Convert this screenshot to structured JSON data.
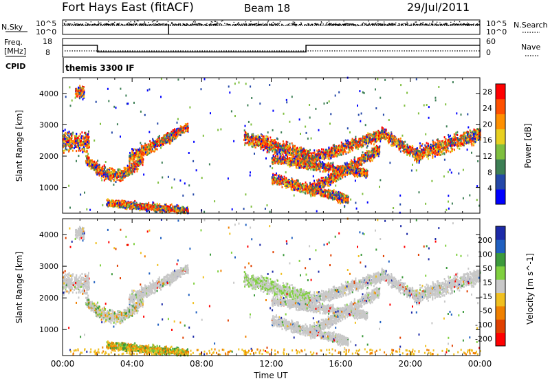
{
  "header": {
    "station": "Fort Hays East (fitACF)",
    "beam": "Beam 18",
    "date": "29/Jul/2011"
  },
  "chart_data": [
    {
      "type": "line",
      "panel": "sky-noise",
      "left_label": "N.Sky",
      "right_label": "N.Search",
      "left_ticks": [
        "10^5",
        "10^0"
      ],
      "right_ticks": [
        "10^5",
        "10^0"
      ],
      "series": [
        {
          "name": "N.Sky",
          "style": "points"
        },
        {
          "name": "N.Search",
          "style": "dotted"
        }
      ]
    },
    {
      "type": "line",
      "panel": "frequency-nave",
      "left_label_line1": "Freq.",
      "left_label_line2": "[MHz]",
      "right_label": "Nave",
      "left_ticks": [
        18,
        8
      ],
      "right_ticks": [
        60,
        0
      ],
      "ylim_freq": [
        8,
        18
      ],
      "ylim_nave": [
        0,
        60
      ],
      "series": [
        {
          "name": "Freq.",
          "style": "solid",
          "segments": [
            [
              0,
              2,
              14.5
            ],
            [
              2,
              14,
              10.6
            ],
            [
              14,
              24,
              14.5
            ]
          ]
        },
        {
          "name": "Nave",
          "style": "dotted",
          "values": "~20-22 throughout"
        }
      ]
    },
    {
      "type": "table",
      "panel": "cpid",
      "label": "CPID",
      "value": "themis 3300 IF"
    },
    {
      "type": "heatmap",
      "panel": "power",
      "ylabel": "Slant Range [km]",
      "colorbar_label": "Power [dB]",
      "colorbar_ticks": [
        4,
        8,
        12,
        16,
        20,
        24,
        28
      ],
      "colorbar_range": [
        0,
        30
      ],
      "colors": [
        "#0000ff",
        "#2448a8",
        "#3d7f55",
        "#7fbf3f",
        "#e8d020",
        "#ff9000",
        "#ff5000",
        "#ff0000"
      ],
      "yticks": [
        1000,
        2000,
        3000,
        4000
      ],
      "ylim": [
        180,
        4500
      ],
      "xlim_hours": [
        0,
        24
      ]
    },
    {
      "type": "heatmap",
      "panel": "velocity",
      "ylabel": "Slant Range [km]",
      "colorbar_label": "Velocity [m s^-1]",
      "colorbar_ticks": [
        200,
        100,
        50,
        15,
        -15,
        -50,
        -100,
        -200
      ],
      "colors": [
        "#1c2aa8",
        "#2060c0",
        "#3c9a3c",
        "#80d040",
        "#c8c8c8",
        "#f0c020",
        "#f08000",
        "#e04000",
        "#ff0000"
      ],
      "yticks": [
        1000,
        2000,
        3000,
        4000
      ],
      "ylim": [
        180,
        4500
      ],
      "xlim_hours": [
        0,
        24
      ],
      "xticks": [
        "00:00",
        "04:00",
        "08:00",
        "12:00",
        "16:00",
        "20:00",
        "00:00"
      ],
      "xlabel": "Time UT"
    }
  ]
}
